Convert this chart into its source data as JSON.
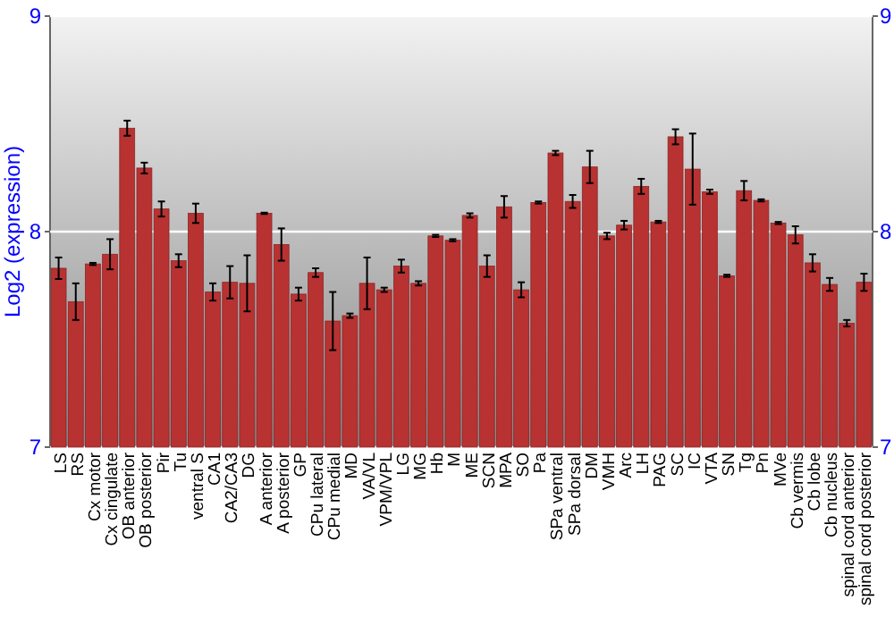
{
  "chart_data": {
    "type": "bar",
    "ylabel": "Log2 (expression)",
    "categories": [
      "LS",
      "RS",
      "Cx motor",
      "Cx cingulate",
      "OB anterior",
      "OB posterior",
      "Pir",
      "Tu",
      "ventral S",
      "CA1",
      "CA2/CA3",
      "DG",
      "A anterior",
      "A posterior",
      "GP",
      "CPu lateral",
      "CPu medial",
      "MD",
      "VA/VL",
      "VPM/VPL",
      "LG",
      "MG",
      "Hb",
      "M",
      "ME",
      "SCN",
      "MPA",
      "SO",
      "Pa",
      "SPa ventral",
      "SPa dorsal",
      "DM",
      "VMH",
      "Arc",
      "LH",
      "PAG",
      "SC",
      "IC",
      "VTA",
      "SN",
      "Tg",
      "Pn",
      "MVe",
      "Cb vermis",
      "Cb lobe",
      "Cb nucleus",
      "spinal cord anterior",
      "spinal cord posterior"
    ],
    "values": [
      7.83,
      7.675,
      7.85,
      7.895,
      8.48,
      8.295,
      8.105,
      7.865,
      8.085,
      7.72,
      7.765,
      7.76,
      8.085,
      7.94,
      7.71,
      7.81,
      7.585,
      7.61,
      7.76,
      7.73,
      7.84,
      7.76,
      7.98,
      7.96,
      8.075,
      7.84,
      8.115,
      7.73,
      8.135,
      8.365,
      8.14,
      8.3,
      7.98,
      8.03,
      8.21,
      8.045,
      8.44,
      8.29,
      8.185,
      7.795,
      8.19,
      8.145,
      8.04,
      7.985,
      7.855,
      7.755,
      7.575,
      7.765
    ],
    "errors": [
      0.05,
      0.085,
      0.005,
      0.07,
      0.035,
      0.025,
      0.035,
      0.03,
      0.045,
      0.04,
      0.075,
      0.13,
      0.003,
      0.075,
      0.03,
      0.02,
      0.135,
      0.01,
      0.12,
      0.01,
      0.03,
      0.01,
      0.005,
      0.005,
      0.01,
      0.05,
      0.05,
      0.035,
      0.005,
      0.01,
      0.03,
      0.075,
      0.015,
      0.02,
      0.035,
      0.005,
      0.035,
      0.165,
      0.01,
      0.005,
      0.045,
      0.005,
      0.005,
      0.04,
      0.04,
      0.03,
      0.015,
      0.04
    ],
    "color": "#b83232",
    "ylim": [
      7,
      9
    ],
    "yticks": [
      7,
      8,
      9
    ],
    "y2lim": [
      7,
      9
    ],
    "y2ticks": [
      7,
      8,
      9
    ],
    "grid": "y"
  }
}
